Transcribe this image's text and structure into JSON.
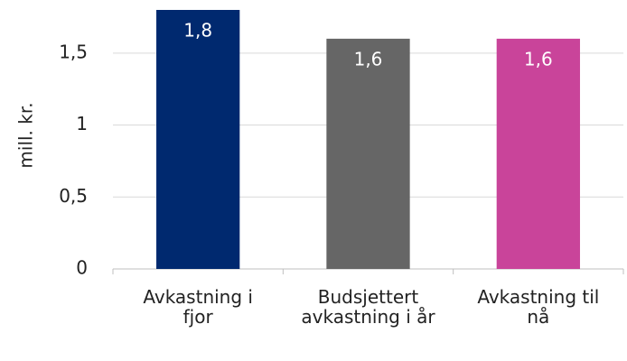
{
  "chart_data": {
    "type": "bar",
    "y_axis_label": "mill. kr.",
    "categories": [
      "Avkastning i fjor",
      "Budsjettert avkastning i år",
      "Avkastning til nå"
    ],
    "values": [
      1.8,
      1.6,
      1.6
    ],
    "value_labels": [
      "1,8",
      "1,6",
      "1,6"
    ],
    "colors": [
      "#00296f",
      "#666666",
      "#c9449a"
    ],
    "ylim": [
      0,
      1.8
    ],
    "yticks": [
      0,
      {
        "value": 0.5,
        "label": "0,5"
      },
      1,
      {
        "value": 1.5,
        "label": "1,5"
      }
    ],
    "grid": true
  }
}
